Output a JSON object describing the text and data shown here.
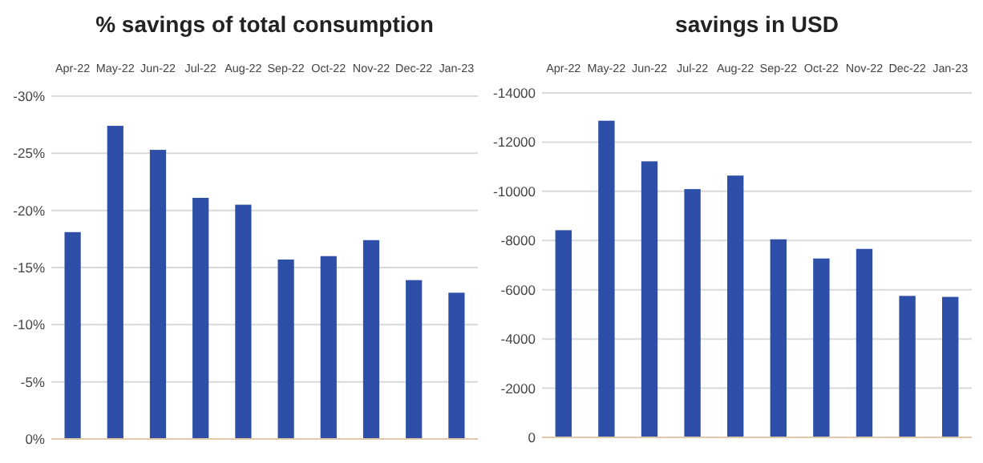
{
  "chart_data": [
    {
      "type": "bar",
      "title": "% savings of total consumption",
      "categories": [
        "Apr-22",
        "May-22",
        "Jun-22",
        "Jul-22",
        "Aug-22",
        "Sep-22",
        "Oct-22",
        "Nov-22",
        "Dec-22",
        "Jan-23"
      ],
      "values": [
        -18.1,
        -27.4,
        -25.3,
        -21.1,
        -20.5,
        -15.7,
        -16.0,
        -17.4,
        -13.9,
        -12.8
      ],
      "color": "#2e4fa8",
      "ylim": [
        0,
        -30
      ],
      "yticks": [
        {
          "value": 0,
          "label": "0%"
        },
        {
          "value": -5,
          "label": "-5%"
        },
        {
          "value": -10,
          "label": "-10%"
        },
        {
          "value": -15,
          "label": "-15%"
        },
        {
          "value": -20,
          "label": "-20%"
        },
        {
          "value": -25,
          "label": "-25%"
        },
        {
          "value": -30,
          "label": "-30%"
        }
      ],
      "grid": "y"
    },
    {
      "type": "bar",
      "title": "savings in USD",
      "categories": [
        "Apr-22",
        "May-22",
        "Jun-22",
        "Jul-22",
        "Aug-22",
        "Sep-22",
        "Oct-22",
        "Nov-22",
        "Dec-22",
        "Jan-23"
      ],
      "values": [
        -8420,
        -12870,
        -11220,
        -10090,
        -10640,
        -8050,
        -7270,
        -7660,
        -5750,
        -5710
      ],
      "color": "#2e4fa8",
      "ylim": [
        0,
        -14000
      ],
      "yticks": [
        0,
        -2000,
        -4000,
        -6000,
        -8000,
        -10000,
        -12000,
        -14000
      ],
      "grid": "y"
    }
  ]
}
